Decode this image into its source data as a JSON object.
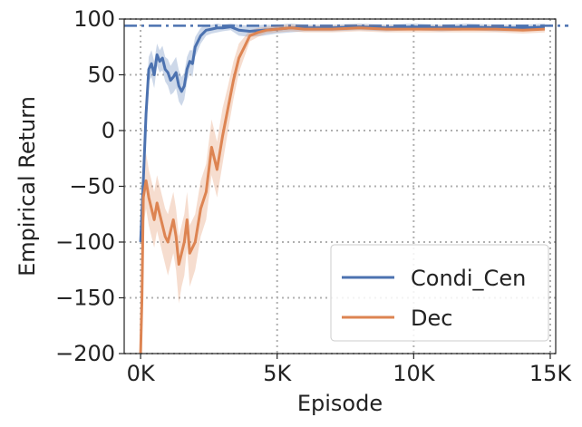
{
  "chart_data": {
    "type": "line",
    "title": "",
    "xlabel": "Episode",
    "ylabel": "Empirical Return",
    "xlim": [
      -600,
      15200
    ],
    "ylim": [
      -200,
      100
    ],
    "x_ticks": [
      0,
      5000,
      10000,
      15000
    ],
    "x_tick_labels": [
      "0K",
      "5K",
      "10K",
      "15K"
    ],
    "y_ticks": [
      100,
      50,
      0,
      -50,
      -100,
      -150,
      -200
    ],
    "y_tick_labels": [
      "100",
      "50",
      "0",
      "−50",
      "−100",
      "−150",
      "−200"
    ],
    "grid": true,
    "legend_position": "bottom-right",
    "reference_line": {
      "y": 94,
      "style": "dash-dot",
      "color": "#4C72B0"
    },
    "series": [
      {
        "name": "Condi_Cen",
        "color": "#4C72B0",
        "x": [
          0,
          100,
          200,
          300,
          400,
          500,
          600,
          700,
          800,
          900,
          1000,
          1100,
          1200,
          1300,
          1400,
          1500,
          1600,
          1700,
          1800,
          1900,
          2000,
          2200,
          2400,
          2600,
          2800,
          3000,
          3300,
          3600,
          4000,
          4500,
          5000,
          5500,
          6000,
          7000,
          8000,
          9000,
          10000,
          11000,
          12000,
          13000,
          14000,
          14800
        ],
        "values": [
          -100,
          -45,
          15,
          55,
          60,
          50,
          68,
          62,
          65,
          55,
          52,
          45,
          48,
          52,
          40,
          35,
          40,
          55,
          62,
          60,
          75,
          85,
          90,
          91,
          92,
          92,
          93,
          90,
          89,
          90,
          91,
          92,
          92,
          92,
          93,
          92,
          93,
          92,
          93,
          92,
          92,
          93
        ],
        "upper": [
          -92,
          -32,
          28,
          66,
          72,
          62,
          78,
          72,
          76,
          66,
          64,
          58,
          62,
          66,
          54,
          48,
          52,
          66,
          72,
          72,
          84,
          92,
          95,
          95,
          96,
          95,
          96,
          95,
          94,
          95,
          95,
          96,
          95,
          95,
          96,
          95,
          96,
          95,
          96,
          95,
          95,
          96
        ],
        "lower": [
          -108,
          -58,
          2,
          44,
          48,
          38,
          58,
          52,
          54,
          44,
          40,
          32,
          34,
          38,
          26,
          22,
          28,
          44,
          52,
          48,
          66,
          78,
          85,
          87,
          88,
          89,
          90,
          85,
          84,
          85,
          87,
          88,
          89,
          89,
          90,
          89,
          90,
          89,
          90,
          89,
          89,
          90
        ]
      },
      {
        "name": "Dec",
        "color": "#DD8452",
        "x": [
          0,
          50,
          100,
          200,
          300,
          400,
          500,
          600,
          700,
          800,
          900,
          1000,
          1100,
          1200,
          1300,
          1400,
          1500,
          1600,
          1700,
          1800,
          2000,
          2200,
          2400,
          2600,
          2800,
          3000,
          3200,
          3400,
          3600,
          3800,
          4000,
          4300,
          4600,
          5000,
          5500,
          6000,
          7000,
          8000,
          9000,
          10000,
          11000,
          12000,
          13000,
          14000,
          14800
        ],
        "values": [
          -200,
          -150,
          -60,
          -45,
          -60,
          -70,
          -80,
          -65,
          -75,
          -85,
          -95,
          -100,
          -90,
          -80,
          -95,
          -120,
          -110,
          -100,
          -80,
          -110,
          -100,
          -70,
          -55,
          -15,
          -35,
          -5,
          20,
          45,
          65,
          75,
          85,
          88,
          90,
          91,
          92,
          91,
          91,
          92,
          91,
          91,
          91,
          91,
          91,
          90,
          91
        ],
        "upper": [
          -180,
          -125,
          -35,
          -20,
          -35,
          -45,
          -55,
          -40,
          -50,
          -60,
          -70,
          -75,
          -65,
          -55,
          -70,
          -95,
          -85,
          -75,
          -55,
          -85,
          -75,
          -45,
          -30,
          10,
          -10,
          20,
          40,
          62,
          78,
          84,
          90,
          92,
          93,
          94,
          95,
          94,
          94,
          95,
          94,
          94,
          94,
          94,
          94,
          93,
          94
        ],
        "lower": [
          -200,
          -175,
          -85,
          -70,
          -85,
          -95,
          -105,
          -90,
          -100,
          -110,
          -120,
          -130,
          -120,
          -110,
          -125,
          -155,
          -140,
          -130,
          -105,
          -140,
          -125,
          -95,
          -80,
          -40,
          -60,
          -30,
          0,
          28,
          52,
          66,
          80,
          84,
          87,
          88,
          89,
          88,
          88,
          89,
          88,
          88,
          88,
          88,
          88,
          87,
          88
        ]
      }
    ]
  }
}
